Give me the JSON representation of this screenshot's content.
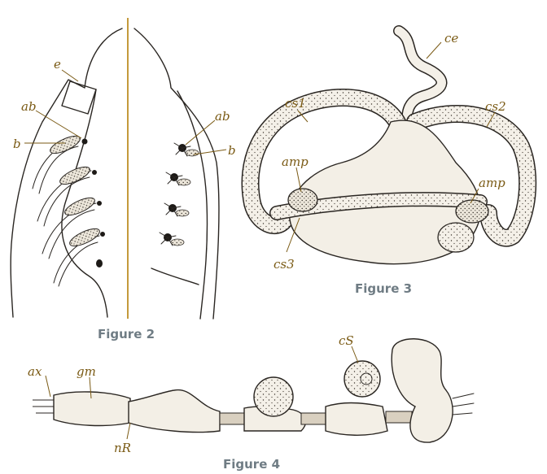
{
  "figures": [
    {
      "caption": "Figure 2",
      "labels": [
        "e",
        "ab",
        "b",
        "ab",
        "b"
      ]
    },
    {
      "caption": "Figure 3",
      "labels": [
        "ce",
        "cs1",
        "cs2",
        "amp",
        "amp",
        "cs3"
      ]
    },
    {
      "caption": "Figure 4",
      "labels": [
        "ax",
        "gm",
        "cS",
        "nR"
      ]
    }
  ],
  "colors": {
    "label": "#7a5a14",
    "caption": "#6f7c84",
    "ink": "#2a2622",
    "divider": "#c49a3c"
  }
}
